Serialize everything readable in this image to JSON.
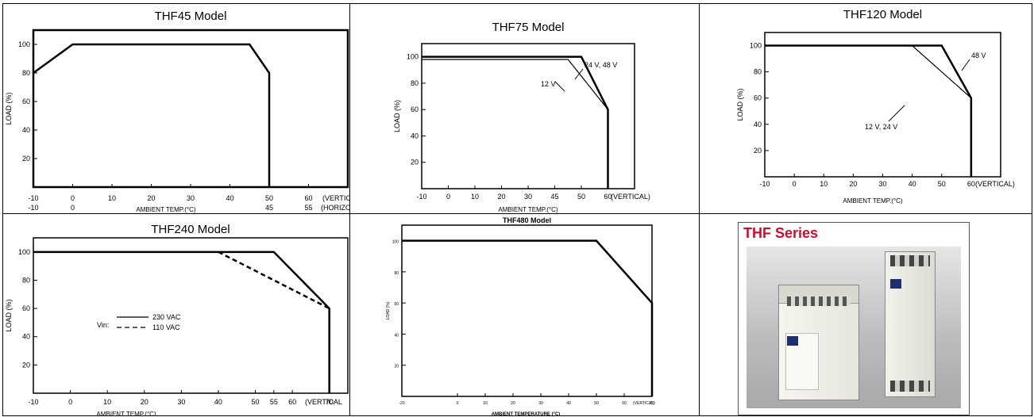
{
  "charts": [
    {
      "title": "THF45 Model",
      "type": "line",
      "ylabel": "LOAD (%)",
      "xlabel": "AMBIENT TEMP.(°C)",
      "y_ticks": [
        "20",
        "40",
        "60",
        "80",
        "100"
      ],
      "x_ticks": [
        "-10",
        "0",
        "10",
        "20",
        "30",
        "40",
        "50",
        "60"
      ],
      "x_ticks_2": [
        "-10",
        "0",
        "45",
        "55"
      ],
      "x_label_vertical": "(VERTICAL)",
      "x_label_horizontal": "(HORIZONTAL)",
      "series": [
        {
          "values": [
            [
              -10,
              80
            ],
            [
              0,
              100
            ],
            [
              45,
              100
            ],
            [
              50,
              80
            ],
            [
              50,
              0
            ]
          ]
        }
      ]
    },
    {
      "title": "THF75 Model",
      "type": "line",
      "ylabel": "LOAD (%)",
      "xlabel": "AMBIENT TEMP.(°C)",
      "y_ticks": [
        "20",
        "40",
        "60",
        "80",
        "100"
      ],
      "x_ticks": [
        "-10",
        "0",
        "10",
        "20",
        "30",
        "45",
        "50",
        "60"
      ],
      "x_label_vertical": "(VERTICAL)",
      "annotations": [
        "24 V, 48 V",
        "12 V"
      ],
      "series": [
        {
          "name": "24 V, 48 V",
          "values": [
            [
              -10,
              100
            ],
            [
              50,
              100
            ],
            [
              60,
              60
            ],
            [
              60,
              0
            ]
          ]
        },
        {
          "name": "12 V",
          "values": [
            [
              -10,
              98
            ],
            [
              45,
              98
            ],
            [
              60,
              60
            ]
          ]
        }
      ]
    },
    {
      "title": "THF120 Model",
      "type": "line",
      "ylabel": "LOAD (%)",
      "xlabel": "AMBIENT TEMP.(°C)",
      "y_ticks": [
        "20",
        "40",
        "60",
        "80",
        "100"
      ],
      "x_ticks": [
        "-10",
        "0",
        "10",
        "20",
        "30",
        "40",
        "50",
        "60"
      ],
      "x_label_vertical": "(VERTICAL)",
      "annotations": [
        "48 V",
        "12 V, 24 V"
      ],
      "series": [
        {
          "name": "48 V",
          "values": [
            [
              -10,
              100
            ],
            [
              50,
              100
            ],
            [
              60,
              60
            ],
            [
              60,
              0
            ]
          ]
        },
        {
          "name": "12 V, 24 V",
          "values": [
            [
              40,
              100
            ],
            [
              60,
              60
            ]
          ]
        }
      ]
    },
    {
      "title": "THF240 Model",
      "type": "line",
      "ylabel": "LOAD (%)",
      "xlabel": "AMBIENT TEMP.(°C)",
      "y_ticks": [
        "20",
        "40",
        "60",
        "80",
        "100"
      ],
      "x_ticks": [
        "-10",
        "0",
        "10",
        "20",
        "30",
        "40",
        "50",
        "55",
        "60",
        "70"
      ],
      "x_label_vertical": "(VERTICAL",
      "legend_prefix": "Vin:",
      "legend": [
        "230 VAC",
        "110 VAC"
      ],
      "series": [
        {
          "name": "230 VAC",
          "values": [
            [
              -10,
              100
            ],
            [
              55,
              100
            ],
            [
              70,
              60
            ],
            [
              70,
              0
            ]
          ]
        },
        {
          "name": "110 VAC",
          "values": [
            [
              40,
              100
            ],
            [
              70,
              60
            ]
          ]
        }
      ]
    },
    {
      "title": "THF480 Model",
      "type": "line",
      "ylabel": "LOAD (%)",
      "xlabel": "AMBIENT TEMPERATURE (°C)",
      "y_ticks": [
        "20",
        "40",
        "60",
        "80",
        "100"
      ],
      "x_ticks": [
        "-20",
        "0",
        "10",
        "20",
        "30",
        "40",
        "50",
        "60",
        "70"
      ],
      "x_label_vertical": "(VERTICAL)",
      "series": [
        {
          "values": [
            [
              -20,
              100
            ],
            [
              50,
              100
            ],
            [
              70,
              60
            ],
            [
              70,
              0
            ]
          ]
        }
      ]
    }
  ],
  "photo": {
    "title": "THF Series"
  }
}
